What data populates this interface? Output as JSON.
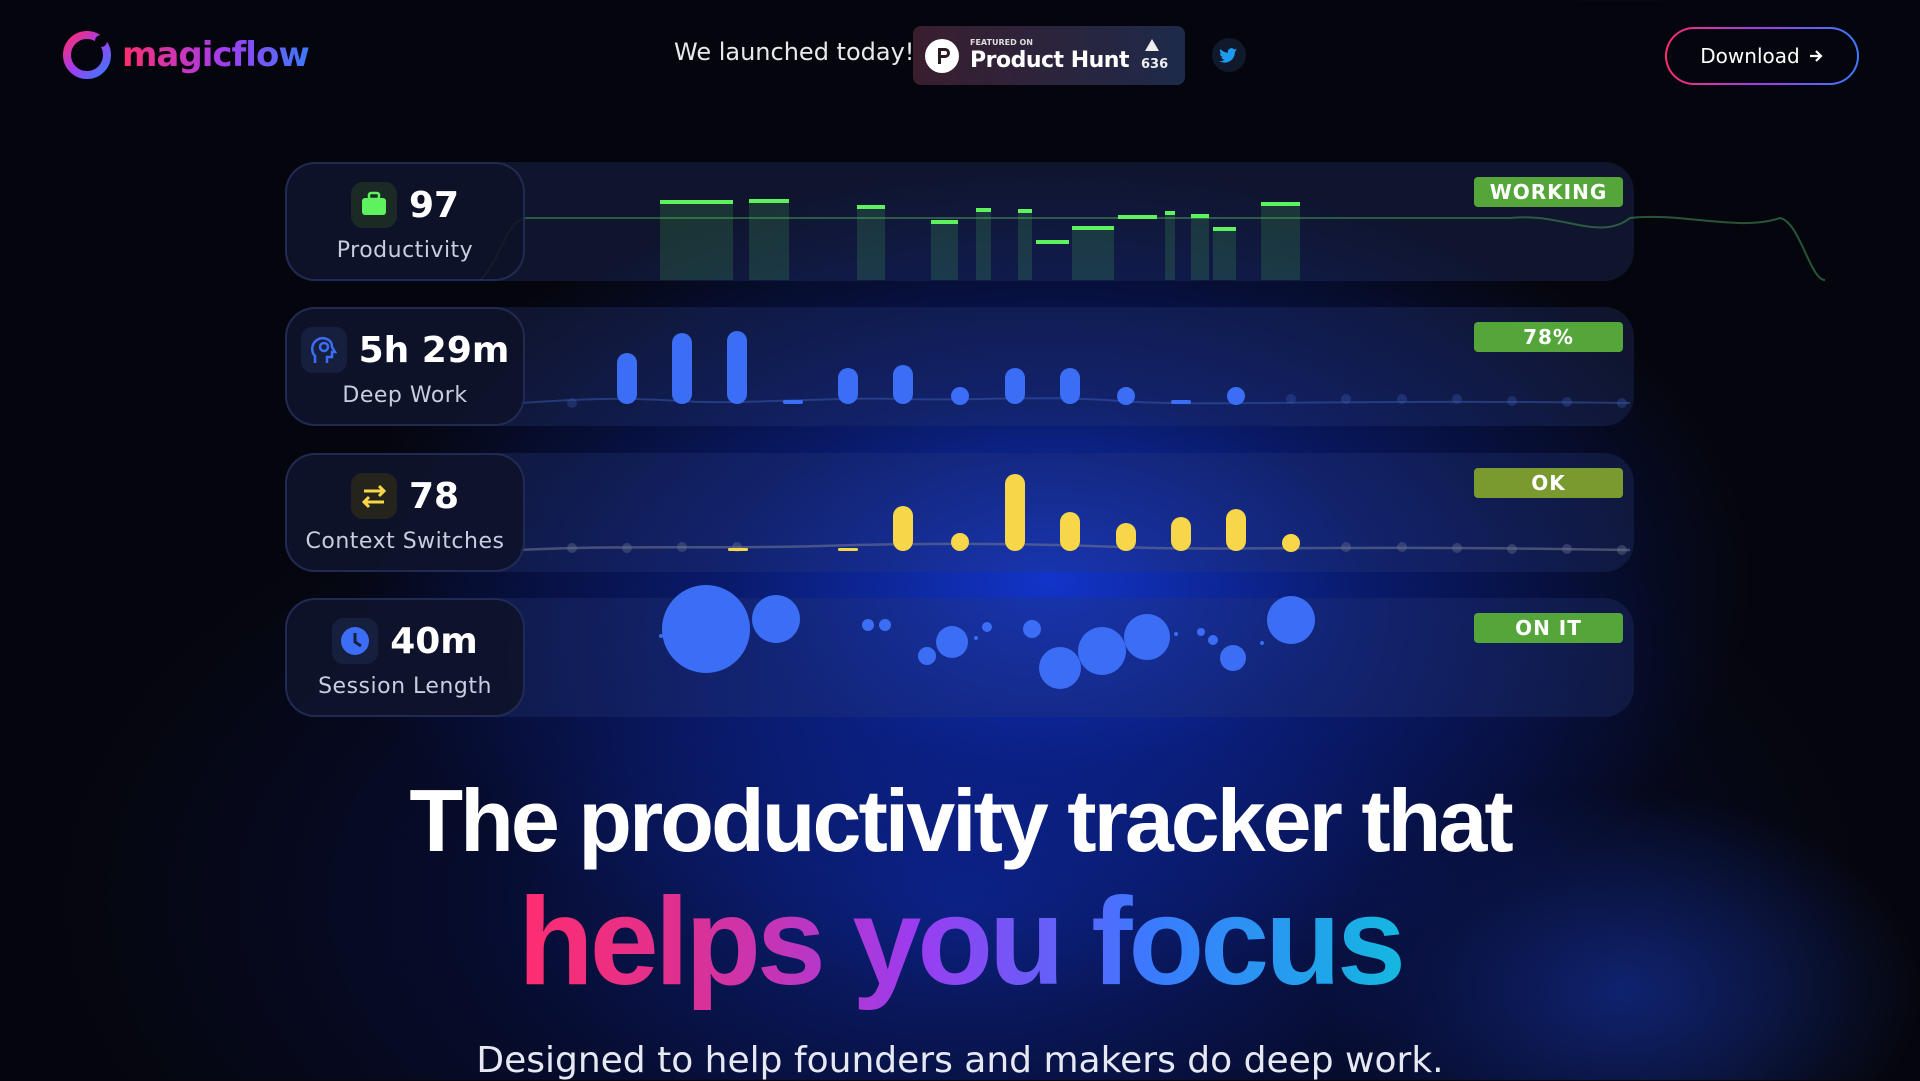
{
  "header": {
    "logo": "magicflow",
    "announcement": "We launched today!",
    "product_hunt": {
      "featured": "FEATURED ON",
      "name": "Product Hunt",
      "votes": 636
    },
    "download": "Download"
  },
  "metrics": [
    {
      "value": 97,
      "label": "Productivity",
      "status": "WORKING"
    },
    {
      "value": "5h 29m",
      "label": "Deep Work",
      "status": "78%"
    },
    {
      "value": 78,
      "label": "Context Switches",
      "status": "OK"
    },
    {
      "value": "40m",
      "label": "Session Length",
      "status": "ON IT"
    }
  ],
  "hero": {
    "title": "The productivity tracker that",
    "highlight": "helps you focus",
    "subtitle": "Designed to help founders and makers do deep work."
  }
}
